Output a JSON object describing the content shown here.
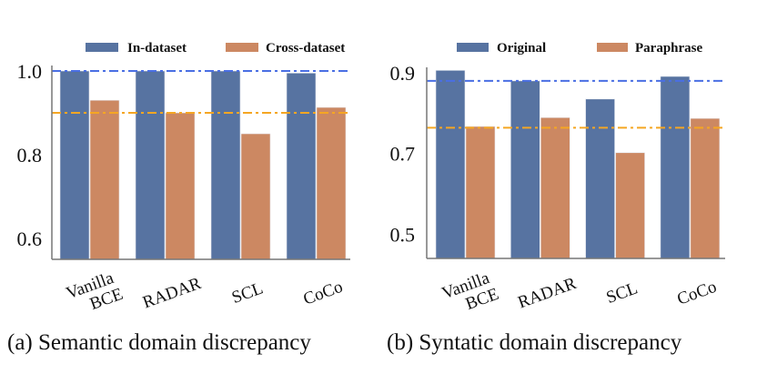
{
  "colors": {
    "series1": "#5773A1",
    "series2": "#CC8862",
    "ref_line1": "#4A6FE3",
    "ref_line2": "#F5A623"
  },
  "chart_data": [
    {
      "type": "bar",
      "title": "",
      "caption": "(a) Semantic domain discrepancy",
      "xlabel": "",
      "ylabel": "",
      "categories": [
        [
          "Vanilla",
          "BCE"
        ],
        [
          "RADAR"
        ],
        [
          "SCL"
        ],
        [
          "CoCo"
        ]
      ],
      "series": [
        {
          "name": "In-dataset",
          "values": [
            1.0,
            1.0,
            1.0,
            0.995
          ]
        },
        {
          "name": "Cross-dataset",
          "values": [
            0.93,
            0.9,
            0.85,
            0.913
          ]
        }
      ],
      "reference_lines": [
        {
          "series": "In-dataset",
          "value": 1.0,
          "style": "dash-dot"
        },
        {
          "series": "Cross-dataset",
          "value": 0.9,
          "style": "dash-dot"
        }
      ],
      "ylim": [
        0.55,
        1.0
      ],
      "yticks": [
        0.6,
        0.8,
        1.0
      ],
      "ytick_labels": [
        "0.6",
        "0.8",
        "1.0"
      ],
      "grid": false,
      "legend": "top"
    },
    {
      "type": "bar",
      "title": "",
      "caption": "(b) Syntatic domain discrepancy",
      "xlabel": "",
      "ylabel": "",
      "categories": [
        [
          "Vanilla",
          "BCE"
        ],
        [
          "RADAR"
        ],
        [
          "SCL"
        ],
        [
          "CoCo"
        ]
      ],
      "series": [
        {
          "name": "Original",
          "values": [
            0.906,
            0.88,
            0.835,
            0.891
          ]
        },
        {
          "name": "Paraphrase",
          "values": [
            0.767,
            0.789,
            0.702,
            0.787
          ]
        }
      ],
      "reference_lines": [
        {
          "series": "Original",
          "value": 0.88,
          "style": "dash-dot"
        },
        {
          "series": "Paraphrase",
          "value": 0.764,
          "style": "dash-dot"
        }
      ],
      "ylim": [
        0.44,
        0.9
      ],
      "yticks": [
        0.5,
        0.7,
        0.9
      ],
      "ytick_labels": [
        "0.5",
        "0.7",
        "0.9"
      ],
      "grid": false,
      "legend": "top"
    }
  ]
}
